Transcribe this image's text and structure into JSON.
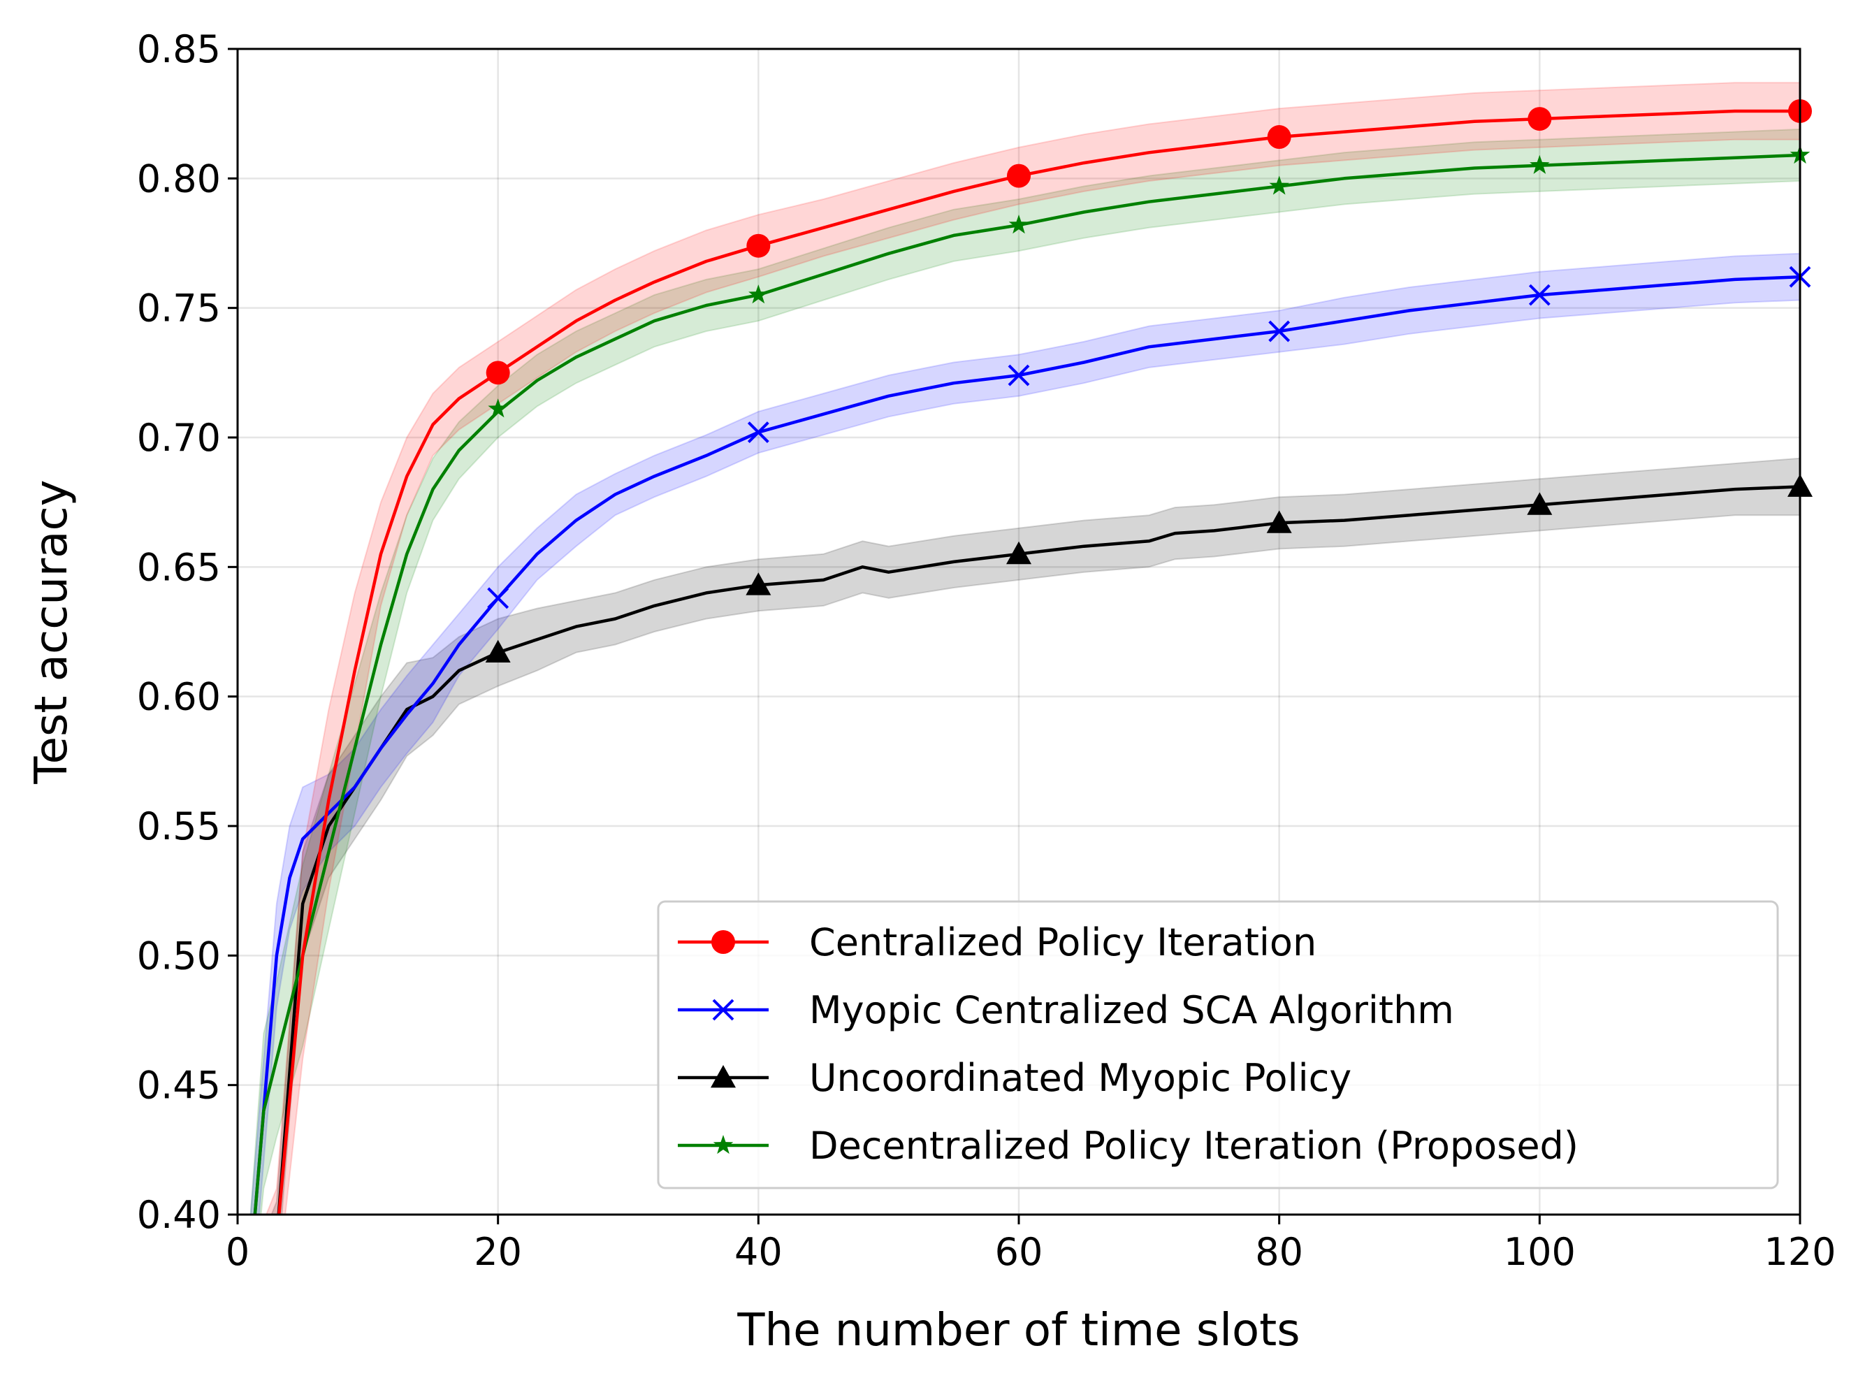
{
  "chart_data": {
    "type": "line",
    "title": "",
    "xlabel": "The number of time slots",
    "ylabel": "Test accuracy",
    "xlim": [
      0,
      120
    ],
    "ylim": [
      0.4,
      0.85
    ],
    "xticks": [
      "0",
      "20",
      "40",
      "60",
      "80",
      "100",
      "120"
    ],
    "yticks": [
      "0.40",
      "0.45",
      "0.50",
      "0.55",
      "0.60",
      "0.65",
      "0.70",
      "0.75",
      "0.80",
      "0.85"
    ],
    "grid": true,
    "legend_position": "lower-right",
    "series": [
      {
        "name": "Centralized Policy Iteration",
        "color": "#ff0000",
        "marker": "circle",
        "x": [
          1,
          3,
          5,
          7,
          9,
          11,
          13,
          15,
          17,
          20,
          23,
          26,
          29,
          32,
          36,
          40,
          45,
          50,
          55,
          60,
          65,
          70,
          75,
          80,
          85,
          90,
          95,
          100,
          105,
          110,
          115,
          120
        ],
        "y": [
          0.37,
          0.39,
          0.5,
          0.56,
          0.61,
          0.655,
          0.685,
          0.705,
          0.715,
          0.725,
          0.735,
          0.745,
          0.753,
          0.76,
          0.768,
          0.774,
          0.781,
          0.788,
          0.795,
          0.801,
          0.806,
          0.81,
          0.813,
          0.816,
          0.818,
          0.82,
          0.822,
          0.823,
          0.824,
          0.825,
          0.826,
          0.826
        ],
        "band": [
          0.015,
          0.02,
          0.04,
          0.035,
          0.03,
          0.02,
          0.015,
          0.012,
          0.012,
          0.012,
          0.012,
          0.012,
          0.012,
          0.012,
          0.012,
          0.012,
          0.011,
          0.011,
          0.011,
          0.011,
          0.011,
          0.011,
          0.011,
          0.011,
          0.011,
          0.011,
          0.011,
          0.011,
          0.011,
          0.011,
          0.011,
          0.011
        ],
        "markers_x": [
          20,
          40,
          60,
          80,
          100,
          120
        ],
        "markers_y": [
          0.725,
          0.774,
          0.801,
          0.816,
          0.823,
          0.826
        ]
      },
      {
        "name": "Myopic Centralized SCA Algorithm",
        "color": "#0000ff",
        "marker": "x",
        "x": [
          1,
          2,
          3,
          4,
          5,
          7,
          9,
          11,
          13,
          15,
          17,
          20,
          23,
          26,
          29,
          32,
          36,
          40,
          45,
          50,
          55,
          60,
          65,
          70,
          75,
          80,
          85,
          90,
          95,
          100,
          105,
          110,
          115,
          120
        ],
        "y": [
          0.38,
          0.44,
          0.5,
          0.53,
          0.545,
          0.555,
          0.565,
          0.58,
          0.593,
          0.605,
          0.62,
          0.638,
          0.655,
          0.668,
          0.678,
          0.685,
          0.693,
          0.702,
          0.709,
          0.716,
          0.721,
          0.724,
          0.729,
          0.735,
          0.738,
          0.741,
          0.745,
          0.749,
          0.752,
          0.755,
          0.757,
          0.759,
          0.761,
          0.762
        ],
        "band": [
          0.02,
          0.02,
          0.02,
          0.02,
          0.02,
          0.015,
          0.015,
          0.015,
          0.015,
          0.015,
          0.012,
          0.012,
          0.01,
          0.01,
          0.008,
          0.008,
          0.008,
          0.008,
          0.008,
          0.008,
          0.008,
          0.008,
          0.008,
          0.008,
          0.008,
          0.008,
          0.009,
          0.009,
          0.009,
          0.009,
          0.009,
          0.009,
          0.009,
          0.009
        ],
        "markers_x": [
          20,
          40,
          60,
          80,
          100,
          120
        ],
        "markers_y": [
          0.638,
          0.702,
          0.724,
          0.741,
          0.755,
          0.762
        ]
      },
      {
        "name": "Uncoordinated Myopic Policy",
        "color": "#000000",
        "marker": "triangle",
        "x": [
          1,
          3,
          5,
          7,
          9,
          11,
          13,
          15,
          17,
          20,
          23,
          26,
          29,
          32,
          36,
          40,
          45,
          48,
          50,
          55,
          60,
          65,
          70,
          72,
          75,
          80,
          85,
          90,
          95,
          100,
          105,
          110,
          115,
          120
        ],
        "y": [
          0.37,
          0.39,
          0.52,
          0.55,
          0.565,
          0.58,
          0.595,
          0.6,
          0.61,
          0.617,
          0.622,
          0.627,
          0.63,
          0.635,
          0.64,
          0.643,
          0.645,
          0.65,
          0.648,
          0.652,
          0.655,
          0.658,
          0.66,
          0.663,
          0.664,
          0.667,
          0.668,
          0.67,
          0.672,
          0.674,
          0.676,
          0.678,
          0.68,
          0.681
        ],
        "band": [
          0.01,
          0.015,
          0.02,
          0.02,
          0.02,
          0.02,
          0.018,
          0.015,
          0.013,
          0.013,
          0.012,
          0.01,
          0.01,
          0.01,
          0.01,
          0.01,
          0.01,
          0.01,
          0.01,
          0.01,
          0.01,
          0.01,
          0.01,
          0.01,
          0.01,
          0.01,
          0.01,
          0.01,
          0.01,
          0.01,
          0.01,
          0.01,
          0.01,
          0.011
        ],
        "markers_x": [
          20,
          40,
          60,
          80,
          100,
          120
        ],
        "markers_y": [
          0.617,
          0.643,
          0.655,
          0.667,
          0.674,
          0.681
        ]
      },
      {
        "name": "Decentralized Policy Iteration (Proposed)",
        "color": "#008000",
        "marker": "star",
        "x": [
          1,
          2,
          3,
          5,
          7,
          9,
          11,
          13,
          15,
          17,
          20,
          23,
          26,
          29,
          32,
          36,
          40,
          45,
          50,
          55,
          60,
          65,
          70,
          75,
          80,
          85,
          90,
          95,
          100,
          105,
          110,
          115,
          120
        ],
        "y": [
          0.38,
          0.44,
          0.46,
          0.5,
          0.54,
          0.58,
          0.62,
          0.655,
          0.68,
          0.695,
          0.71,
          0.722,
          0.731,
          0.738,
          0.745,
          0.751,
          0.755,
          0.763,
          0.771,
          0.778,
          0.782,
          0.787,
          0.791,
          0.794,
          0.797,
          0.8,
          0.802,
          0.804,
          0.805,
          0.806,
          0.807,
          0.808,
          0.809
        ],
        "band": [
          0.02,
          0.03,
          0.03,
          0.035,
          0.03,
          0.025,
          0.02,
          0.015,
          0.012,
          0.011,
          0.01,
          0.01,
          0.01,
          0.01,
          0.01,
          0.01,
          0.01,
          0.01,
          0.01,
          0.01,
          0.01,
          0.01,
          0.01,
          0.01,
          0.01,
          0.01,
          0.01,
          0.01,
          0.01,
          0.01,
          0.01,
          0.01,
          0.01
        ],
        "markers_x": [
          20,
          40,
          60,
          80,
          100,
          120
        ],
        "markers_y": [
          0.711,
          0.755,
          0.782,
          0.797,
          0.805,
          0.809
        ]
      }
    ]
  }
}
